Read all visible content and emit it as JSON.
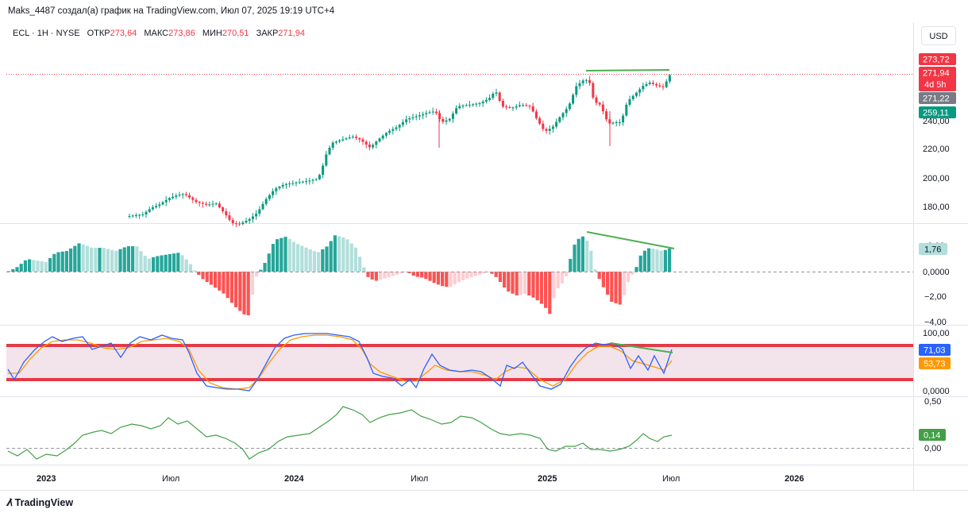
{
  "header": {
    "author_line": "Maks_4487 создал(а) график на TradingView.com, Июл 07, 2025 19:19 UTC+4"
  },
  "legend": {
    "symbol": "ECL · 1H · NYSE",
    "open_label": "ОТКР",
    "open_value": "273,64",
    "high_label": "МАКС",
    "high_value": "273,86",
    "low_label": "МИН",
    "low_value": "270,51",
    "close_label": "ЗАКР",
    "close_value": "271,94"
  },
  "currency_button": "USD",
  "price_axis": {
    "ticks": [
      "180,00",
      "200,00",
      "220,00",
      "240,00"
    ],
    "badges": [
      {
        "name": "high-price-badge",
        "text": "273,72",
        "bg": "#f23645",
        "fg": "#ffffff"
      },
      {
        "name": "last-price-badge",
        "text": "271,94",
        "bg": "#f23645",
        "fg": "#ffffff"
      },
      {
        "name": "countdown-badge",
        "text": "4d 5h",
        "bg": "#f23645",
        "fg": "#ffffff"
      },
      {
        "name": "prev-close-badge",
        "text": "271,22",
        "bg": "#787b86",
        "fg": "#ffffff"
      },
      {
        "name": "ma-price-badge",
        "text": "259,11",
        "bg": "#089981",
        "fg": "#ffffff"
      }
    ]
  },
  "macd_axis": {
    "ticks": [
      "0,0000",
      "−2,00",
      "−4,00"
    ],
    "top_tick_partial": "2,00",
    "badge": {
      "text": "1,76",
      "bg": "#b2dfdb",
      "fg": "#131722"
    }
  },
  "stoch_axis": {
    "ticks": [
      "100,00",
      "0,0000"
    ],
    "badges": [
      {
        "name": "stoch-k-badge",
        "text": "71,03",
        "bg": "#2962ff",
        "fg": "#ffffff"
      },
      {
        "name": "stoch-d-badge",
        "text": "53,73",
        "bg": "#ff9800",
        "fg": "#ffffff"
      }
    ]
  },
  "osc_axis": {
    "ticks": [
      "0,50",
      "0,00"
    ],
    "badge": {
      "text": "0,14",
      "bg": "#43a047",
      "fg": "#ffffff"
    }
  },
  "time_axis": {
    "labels": [
      {
        "text": "2023",
        "bold": true
      },
      {
        "text": "Июл",
        "bold": false
      },
      {
        "text": "2024",
        "bold": true
      },
      {
        "text": "Июл",
        "bold": false
      },
      {
        "text": "2025",
        "bold": true
      },
      {
        "text": "Июл",
        "bold": false
      },
      {
        "text": "2026",
        "bold": true
      }
    ]
  },
  "colors": {
    "up": "#089981",
    "down": "#f23645",
    "hist_up_strong": "#26a69a",
    "hist_up_weak": "#b2dfdb",
    "hist_down_strong": "#ff5252",
    "hist_down_weak": "#ffcdd2",
    "stoch_k": "#2962ff",
    "stoch_d": "#ff9800",
    "band_line": "#e53946",
    "band_fill": "#f3e4ec",
    "osc_line": "#43a047",
    "trend_line": "#4caf50"
  },
  "footer": {
    "brand": "TradingView"
  }
}
